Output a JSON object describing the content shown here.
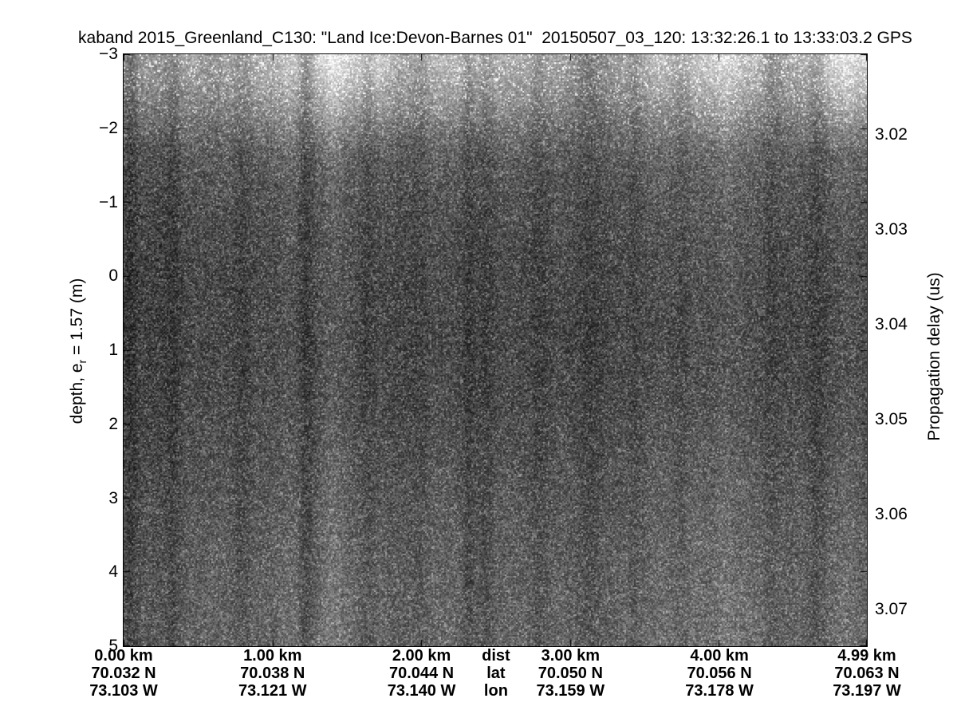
{
  "figure": {
    "title": "kaband 2015_Greenland_C130: \"Land Ice:Devon-Barnes 01\"  20150507_03_120: 13:32:26.1 to 13:33:03.2 GPS"
  },
  "left_axis": {
    "label_prefix": "depth, e",
    "label_sub": "r",
    "label_suffix": " = 1.57 (m)",
    "tick_labels": [
      "−3",
      "−2",
      "−1",
      "0",
      "1",
      "2",
      "3",
      "4",
      "5"
    ],
    "tick_values": [
      -3,
      -2,
      -1,
      0,
      1,
      2,
      3,
      4,
      5
    ],
    "range": [
      -3,
      5
    ]
  },
  "right_axis": {
    "label": "Propagation delay (us)",
    "tick_labels": [
      "3.02",
      "3.03",
      "3.04",
      "3.05",
      "3.06",
      "3.07"
    ],
    "tick_values": [
      3.02,
      3.03,
      3.04,
      3.05,
      3.06,
      3.07
    ],
    "range": [
      3.0115,
      3.0739
    ]
  },
  "x_axis": {
    "range_km": [
      0,
      4.99
    ],
    "header": {
      "dist": "dist",
      "lat": "lat",
      "lon": "lon",
      "position_km": 2.5
    },
    "columns": [
      {
        "km": 0,
        "dist": "0.00 km",
        "lat": "70.032 N",
        "lon": "73.103 W"
      },
      {
        "km": 1,
        "dist": "1.00 km",
        "lat": "70.038 N",
        "lon": "73.121 W"
      },
      {
        "km": 2,
        "dist": "2.00 km",
        "lat": "70.044 N",
        "lon": "73.140 W"
      },
      {
        "km": 3,
        "dist": "3.00 km",
        "lat": "70.050 N",
        "lon": "73.159 W"
      },
      {
        "km": 4,
        "dist": "4.00 km",
        "lat": "70.056 N",
        "lon": "73.178 W"
      },
      {
        "km": 4.99,
        "dist": "4.99 km",
        "lat": "70.063 N",
        "lon": "73.197 W"
      }
    ]
  },
  "chart_data": {
    "type": "heatmap",
    "subtype": "radar-echogram",
    "title": "kaband 2015_Greenland_C130: \"Land Ice:Devon-Barnes 01\"  20150507_03_120: 13:32:26.1 to 13:33:03.2 GPS",
    "colormap": "gray",
    "x_axis": {
      "label_rows": [
        "dist",
        "lat",
        "lon"
      ],
      "xlim_km": [
        0,
        4.99
      ],
      "tick_columns": [
        {
          "dist_km": 0.0,
          "lat_deg_N": 70.032,
          "lon_deg_W": 73.103
        },
        {
          "dist_km": 1.0,
          "lat_deg_N": 70.038,
          "lon_deg_W": 73.121
        },
        {
          "dist_km": 2.0,
          "lat_deg_N": 70.044,
          "lon_deg_W": 73.14
        },
        {
          "dist_km": 3.0,
          "lat_deg_N": 70.05,
          "lon_deg_W": 73.159
        },
        {
          "dist_km": 4.0,
          "lat_deg_N": 70.056,
          "lon_deg_W": 73.178
        },
        {
          "dist_km": 4.99,
          "lat_deg_N": 70.063,
          "lon_deg_W": 73.197
        }
      ]
    },
    "y_axis_left": {
      "label": "depth, e_r = 1.57 (m)",
      "ticks_m": [
        -3,
        -2,
        -1,
        0,
        1,
        2,
        3,
        4,
        5
      ],
      "ylim_m": [
        -3,
        5
      ]
    },
    "y_axis_right": {
      "label": "Propagation delay (us)",
      "ticks_us": [
        3.02,
        3.03,
        3.04,
        3.05,
        3.06,
        3.07
      ],
      "ylim_us": [
        3.0115,
        3.0739
      ]
    },
    "appearance": "speckled grayscale radar noise; bright scattering band near top (depth -3 to about -1.5 m), darkest around 0 to 1 m depth, gradually brightening toward 5 m, with faint vertical streaks along track; no coherent reflectors visible"
  }
}
